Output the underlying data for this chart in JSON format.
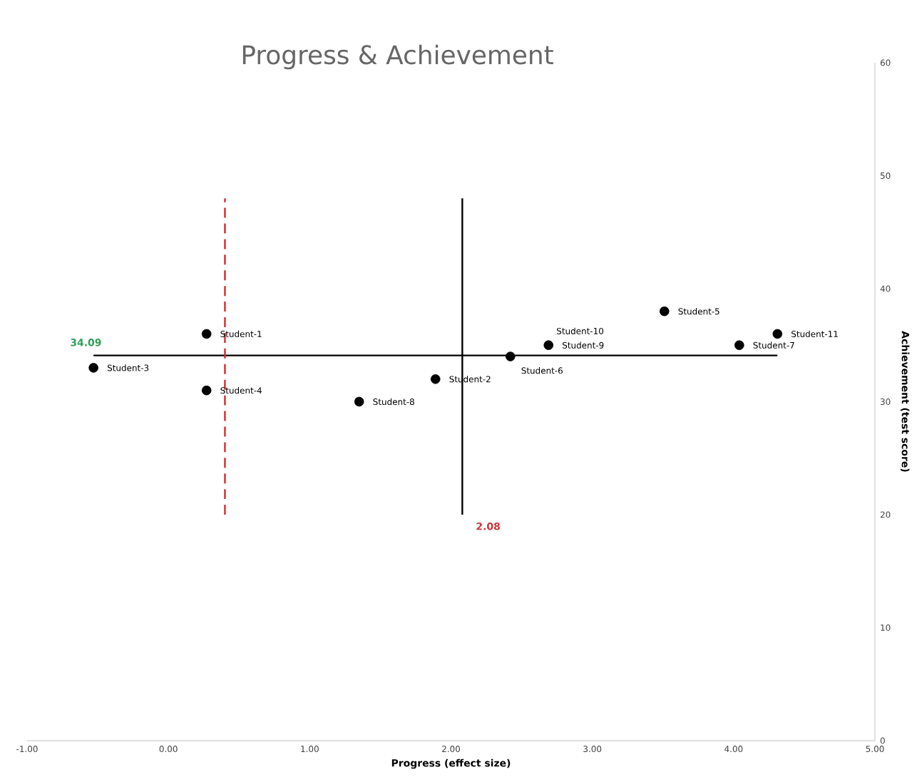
{
  "chart_data": {
    "type": "scatter",
    "title": "Progress & Achievement",
    "xlabel": "Progress (effect size)",
    "ylabel": "Achievement (test score)",
    "xlim": [
      -1,
      5
    ],
    "ylim": [
      0,
      60
    ],
    "xticks": [
      {
        "value": -1,
        "label": "-1.00"
      },
      {
        "value": 0,
        "label": "0.00"
      },
      {
        "value": 1,
        "label": "1.00"
      },
      {
        "value": 2,
        "label": "2.00"
      },
      {
        "value": 3,
        "label": "3.00"
      },
      {
        "value": 4,
        "label": "4.00"
      },
      {
        "value": 5,
        "label": "5.00"
      }
    ],
    "yticks": [
      0,
      10,
      20,
      30,
      40,
      50,
      60
    ],
    "grid": false,
    "series": [
      {
        "marker": "circle",
        "color": "#000000",
        "x": [
          0.27,
          1.89,
          -0.53,
          0.27,
          3.51,
          2.42,
          4.04,
          1.35,
          2.69,
          4.31
        ],
        "values": [
          36,
          32,
          33,
          31,
          38,
          34,
          35,
          30,
          35,
          36
        ]
      },
      {
        "type": "line",
        "color": "#000000",
        "line_style": "solid",
        "x": [
          -0.53,
          4.31
        ],
        "values": [
          34.09,
          34.09
        ]
      },
      {
        "type": "line",
        "color": "#000000",
        "line_style": "solid",
        "x": [
          2.08,
          2.08
        ],
        "values": [
          20,
          48
        ]
      },
      {
        "type": "line",
        "color": "#d42a2a",
        "line_style": "dashed",
        "x": [
          0.4,
          0.4
        ],
        "values": [
          20,
          48
        ]
      }
    ],
    "annotations": [
      {
        "text": "Student-1",
        "x": 0.27,
        "y": 36
      },
      {
        "text": "Student-2",
        "x": 1.89,
        "y": 32
      },
      {
        "text": "Student-3",
        "x": -0.53,
        "y": 33
      },
      {
        "text": "Student-4",
        "x": 0.27,
        "y": 31
      },
      {
        "text": "Student-5",
        "x": 3.51,
        "y": 38
      },
      {
        "text": "Student-6",
        "x": 2.42,
        "y": 34
      },
      {
        "text": "Student-7",
        "x": 4.04,
        "y": 35
      },
      {
        "text": "Student-8",
        "x": 1.35,
        "y": 30
      },
      {
        "text": "Student-9",
        "x": 2.69,
        "y": 35
      },
      {
        "text": "Student-10",
        "x": 2.69,
        "y": 35
      },
      {
        "text": "Student-11",
        "x": 4.31,
        "y": 36
      },
      {
        "text": "34.09",
        "x": -0.53,
        "y": 34.09
      },
      {
        "text": "2.08",
        "x": 2.08,
        "y": 20
      }
    ]
  }
}
